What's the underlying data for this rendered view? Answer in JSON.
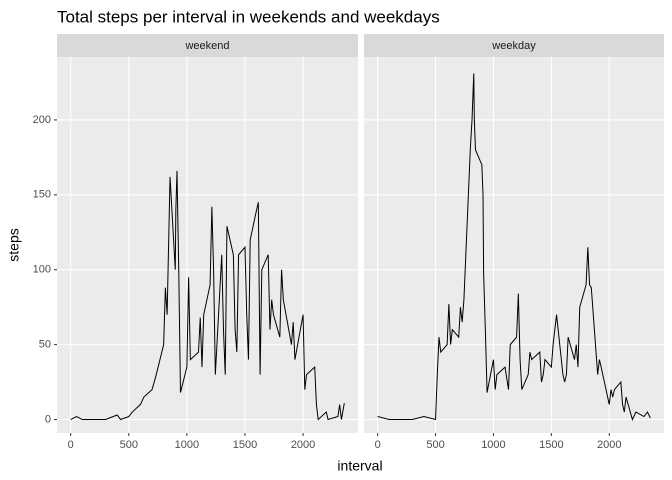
{
  "chart_data": {
    "type": "line",
    "title": "Total steps per interval in weekends and weekdays",
    "xlabel": "interval",
    "ylabel": "steps",
    "xlim": [
      -117.75,
      2472.75
    ],
    "ylim": [
      -9,
      242
    ],
    "xticks": [
      0,
      500,
      1000,
      1500,
      2000
    ],
    "yticks": [
      0,
      50,
      100,
      150,
      200
    ],
    "grid": true,
    "series": [
      {
        "name": "weekend",
        "color": "#000000",
        "x": [
          0,
          50,
          100,
          200,
          300,
          400,
          430,
          500,
          530,
          600,
          630,
          700,
          730,
          800,
          815,
          830,
          845,
          855,
          900,
          905,
          915,
          930,
          945,
          1000,
          1015,
          1030,
          1100,
          1115,
          1130,
          1145,
          1200,
          1215,
          1230,
          1245,
          1300,
          1315,
          1330,
          1345,
          1400,
          1415,
          1430,
          1445,
          1500,
          1515,
          1530,
          1545,
          1600,
          1615,
          1630,
          1645,
          1700,
          1715,
          1730,
          1745,
          1800,
          1815,
          1830,
          1900,
          1915,
          1930,
          2000,
          2015,
          2030,
          2100,
          2115,
          2130,
          2200,
          2215,
          2300,
          2315,
          2330,
          2355
        ],
        "values": [
          0,
          2,
          0,
          0,
          0,
          3,
          0,
          2,
          5,
          10,
          15,
          20,
          28,
          50,
          88,
          70,
          125,
          162,
          100,
          140,
          166,
          100,
          18,
          35,
          95,
          40,
          45,
          68,
          35,
          70,
          90,
          142,
          100,
          30,
          110,
          60,
          30,
          129,
          110,
          60,
          45,
          110,
          115,
          70,
          40,
          120,
          140,
          145,
          30,
          100,
          110,
          60,
          80,
          70,
          55,
          100,
          80,
          50,
          65,
          40,
          70,
          20,
          30,
          35,
          10,
          0,
          5,
          0,
          2,
          10,
          0,
          11
        ]
      },
      {
        "name": "weekday",
        "color": "#000000",
        "x": [
          0,
          100,
          200,
          300,
          400,
          500,
          515,
          530,
          545,
          600,
          615,
          630,
          645,
          700,
          715,
          730,
          745,
          800,
          815,
          830,
          835,
          845,
          900,
          910,
          915,
          930,
          945,
          1000,
          1015,
          1030,
          1100,
          1130,
          1145,
          1200,
          1215,
          1230,
          1245,
          1300,
          1315,
          1330,
          1400,
          1415,
          1430,
          1445,
          1500,
          1515,
          1530,
          1545,
          1600,
          1615,
          1630,
          1645,
          1700,
          1715,
          1730,
          1745,
          1800,
          1815,
          1830,
          1845,
          1900,
          1915,
          1930,
          2000,
          2015,
          2030,
          2045,
          2100,
          2115,
          2130,
          2145,
          2200,
          2230,
          2300,
          2330,
          2355
        ],
        "values": [
          2,
          0,
          0,
          0,
          2,
          0,
          30,
          55,
          45,
          50,
          77,
          50,
          60,
          55,
          75,
          65,
          80,
          180,
          200,
          231,
          200,
          180,
          170,
          150,
          98,
          60,
          18,
          40,
          20,
          30,
          35,
          20,
          50,
          55,
          84,
          40,
          20,
          30,
          45,
          40,
          45,
          25,
          30,
          40,
          35,
          50,
          60,
          70,
          30,
          25,
          30,
          55,
          40,
          50,
          35,
          75,
          90,
          115,
          90,
          88,
          30,
          40,
          35,
          10,
          20,
          15,
          20,
          25,
          10,
          5,
          15,
          0,
          5,
          2,
          5,
          1
        ]
      }
    ]
  }
}
